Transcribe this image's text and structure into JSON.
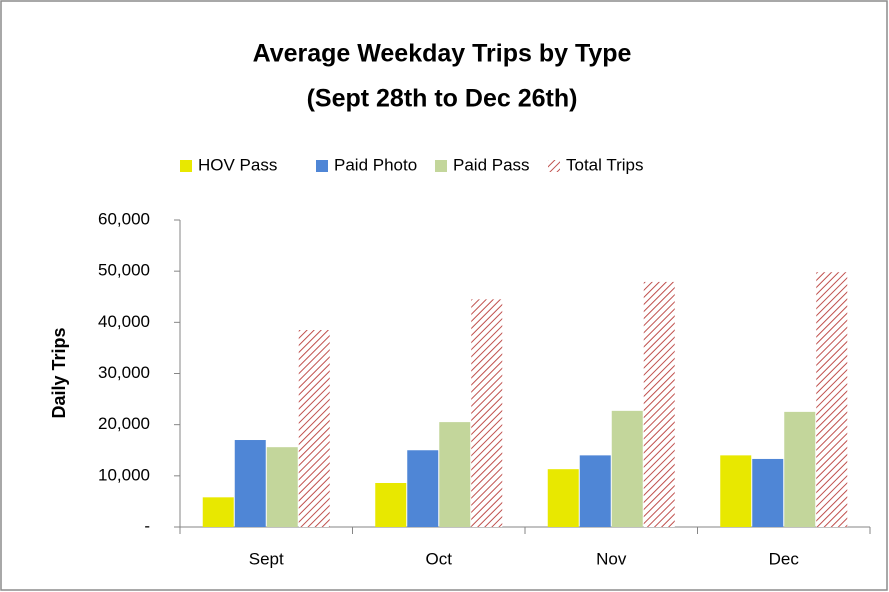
{
  "chart_data": {
    "type": "bar",
    "title": "Average Weekday Trips by Type",
    "subtitle": "(Sept 28th to Dec 26th)",
    "y_label": "Daily Trips",
    "categories": [
      "Sept",
      "Oct",
      "Nov",
      "Dec"
    ],
    "series": [
      {
        "name": "HOV Pass",
        "color": "#e8e800",
        "values": [
          5800,
          8600,
          11300,
          14000
        ]
      },
      {
        "name": "Paid Photo",
        "color": "#4f86d6",
        "values": [
          17000,
          15000,
          14000,
          13300
        ]
      },
      {
        "name": "Paid Pass",
        "color": "#c3d69b",
        "values": [
          15600,
          20500,
          22700,
          22500
        ]
      },
      {
        "name": "Total Trips",
        "color": "#c0504d",
        "pattern": "hatch",
        "values": [
          38500,
          44500,
          47900,
          49800
        ]
      }
    ],
    "ylim": [
      0,
      60000
    ],
    "yticks": [
      {
        "value": 0,
        "label": "-"
      },
      {
        "value": 10000,
        "label": "10,000"
      },
      {
        "value": 20000,
        "label": "20,000"
      },
      {
        "value": 30000,
        "label": "30,000"
      },
      {
        "value": 40000,
        "label": "40,000"
      },
      {
        "value": 50000,
        "label": "50,000"
      },
      {
        "value": 60000,
        "label": "60,000"
      }
    ],
    "legend": "top",
    "grid": false
  }
}
